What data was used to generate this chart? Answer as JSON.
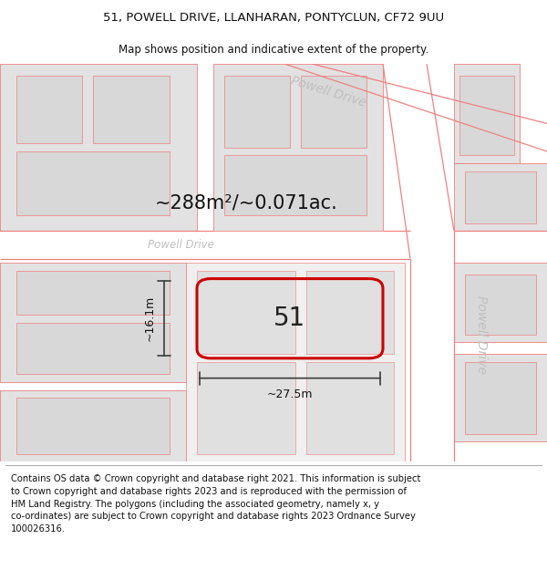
{
  "title": "51, POWELL DRIVE, LLANHARAN, PONTYCLUN, CF72 9UU",
  "subtitle": "Map shows position and indicative extent of the property.",
  "footer_text": "Contains OS data © Crown copyright and database right 2021. This information is subject\nto Crown copyright and database rights 2023 and is reproduced with the permission of\nHM Land Registry. The polygons (including the associated geometry, namely x, y\nco-ordinates) are subject to Crown copyright and database rights 2023 Ordnance Survey\n100026316.",
  "area_label": "~288m²/~0.071ac.",
  "width_label": "~27.5m",
  "height_label": "~16.1m",
  "plot_number": "51",
  "bg_color": "#ffffff",
  "map_bg": "#efefef",
  "road_fill": "#ffffff",
  "building_fill": "#e2e2e2",
  "road_line_color": "#f08080",
  "plot_outline_color": "#cc0000",
  "dim_line_color": "#3a3a3a",
  "title_fontsize": 9.5,
  "subtitle_fontsize": 8.5,
  "footer_fontsize": 7.2,
  "area_label_fontsize": 15,
  "dim_label_fontsize": 9,
  "plot_label_fontsize": 20,
  "road_label_fontsize": 10,
  "road_label_color": "#c0c0c0"
}
